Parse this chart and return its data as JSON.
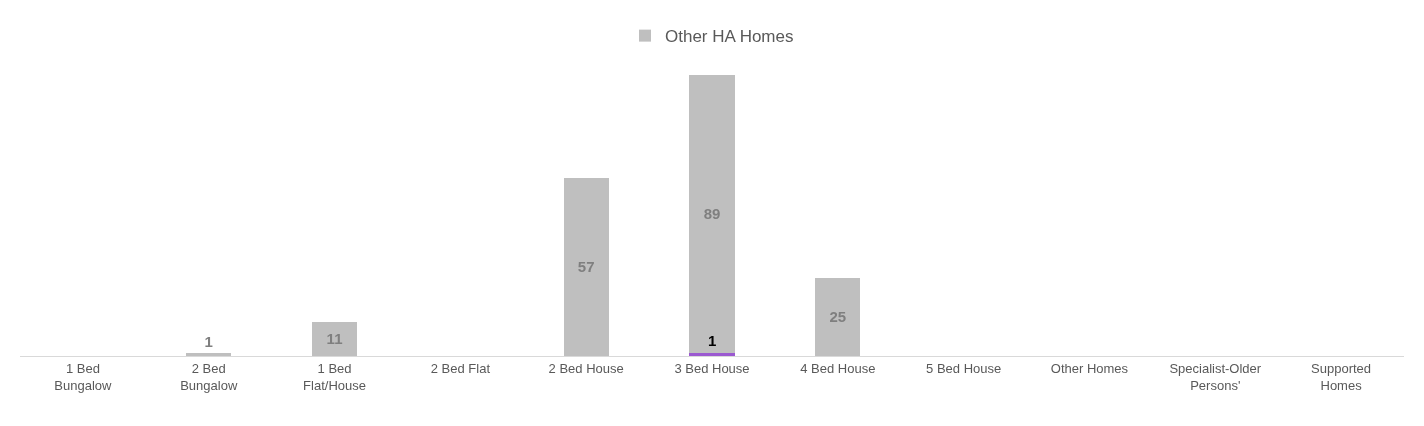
{
  "chart_data": {
    "type": "bar",
    "stacked": true,
    "legend": "top",
    "categories": [
      "1 Bed Bungalow",
      "2 Bed Bungalow",
      "1 Bed Flat/House",
      "2 Bed Flat",
      "2 Bed House",
      "3 Bed House",
      "4 Bed House",
      "5 Bed House",
      "Other Homes",
      "Specialist-Older Persons'",
      "Supported Homes"
    ],
    "series": [
      {
        "color": "#9b59d0",
        "values": [
          0,
          0,
          0,
          0,
          0,
          1,
          0,
          0,
          0,
          0,
          0
        ],
        "value_labels": [
          null,
          null,
          null,
          null,
          null,
          "1",
          null,
          null,
          null,
          null,
          null
        ]
      },
      {
        "name": "Other HA Homes",
        "color": "#bfbfbf",
        "values": [
          0,
          1,
          11,
          0,
          57,
          89,
          25,
          0,
          0,
          0,
          0
        ],
        "value_labels": [
          null,
          "1",
          "11",
          null,
          "57",
          "89",
          "25",
          null,
          null,
          null,
          null
        ]
      }
    ]
  }
}
